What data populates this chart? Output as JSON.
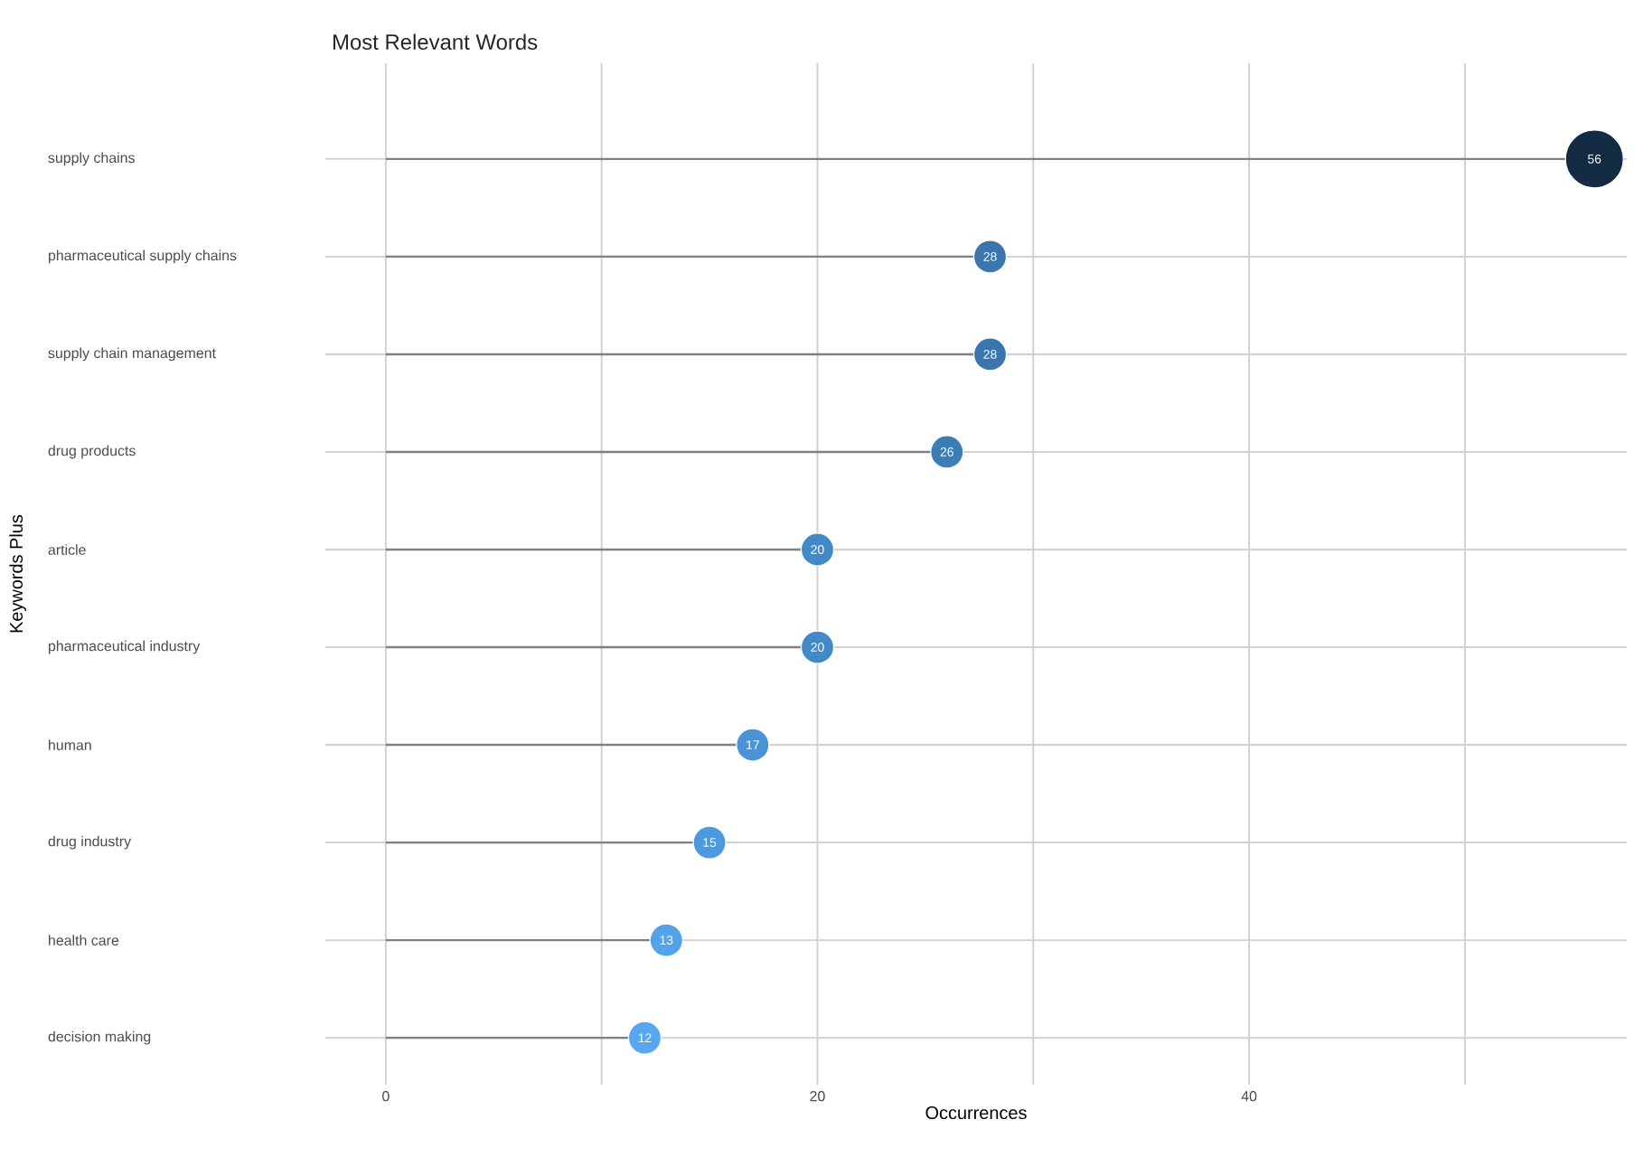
{
  "chart_data": {
    "type": "lollipop",
    "title": "Most Relevant Words",
    "xlabel": "Occurrences",
    "ylabel": "Keywords Plus",
    "orientation": "horizontal",
    "categories": [
      "supply chains",
      "pharmaceutical supply chains",
      "supply chain management",
      "drug products",
      "article",
      "pharmaceutical industry",
      "human",
      "drug industry",
      "health care",
      "decision making"
    ],
    "values": [
      56,
      28,
      28,
      26,
      20,
      20,
      17,
      15,
      13,
      12
    ],
    "colors": [
      "#132b43",
      "#3a76ad",
      "#3a76ad",
      "#3c7db6",
      "#4289c7",
      "#4289c7",
      "#4993d6",
      "#4d99de",
      "#53a2ea",
      "#56a7f0"
    ],
    "xlim": [
      -2.8,
      57.5
    ],
    "xticks": [
      0,
      {
        "value": 10,
        "label": null
      },
      20,
      {
        "value": 30,
        "label": null
      },
      40,
      {
        "value": 50,
        "label": null
      }
    ],
    "grid": true,
    "marker": "circle",
    "data_labels": true
  }
}
